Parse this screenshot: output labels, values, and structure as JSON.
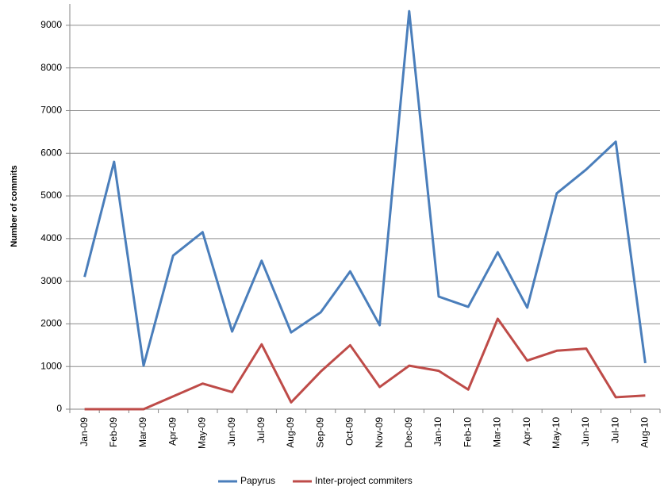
{
  "chart_data": {
    "type": "line",
    "ylabel": "Number of commits",
    "categories": [
      "Jan-09",
      "Feb-09",
      "Mar-09",
      "Apr-09",
      "May-09",
      "Jun-09",
      "Jul-09",
      "Aug-09",
      "Sep-09",
      "Oct-09",
      "Nov-09",
      "Dec-09",
      "Jan-10",
      "Feb-10",
      "Mar-10",
      "Apr-10",
      "May-10",
      "Jun-10",
      "Jul-10",
      "Aug-10"
    ],
    "series": [
      {
        "name": "Papyrus",
        "color": "#4a7ebb",
        "values": [
          3100,
          5800,
          1020,
          3600,
          4150,
          1820,
          3480,
          1800,
          2270,
          3230,
          1970,
          9330,
          2640,
          2400,
          3680,
          2380,
          5060,
          5620,
          6270,
          1080
        ]
      },
      {
        "name": "Inter-project commiters",
        "color": "#be4b48",
        "values": [
          0,
          0,
          0,
          300,
          600,
          400,
          1520,
          160,
          880,
          1500,
          520,
          1020,
          900,
          460,
          2120,
          1140,
          1370,
          1420,
          280,
          320
        ]
      }
    ],
    "ylim": [
      0,
      9500
    ],
    "yticks": [
      0,
      1000,
      2000,
      3000,
      4000,
      5000,
      6000,
      7000,
      8000,
      9000
    ],
    "grid": true,
    "legend": "bottom"
  }
}
